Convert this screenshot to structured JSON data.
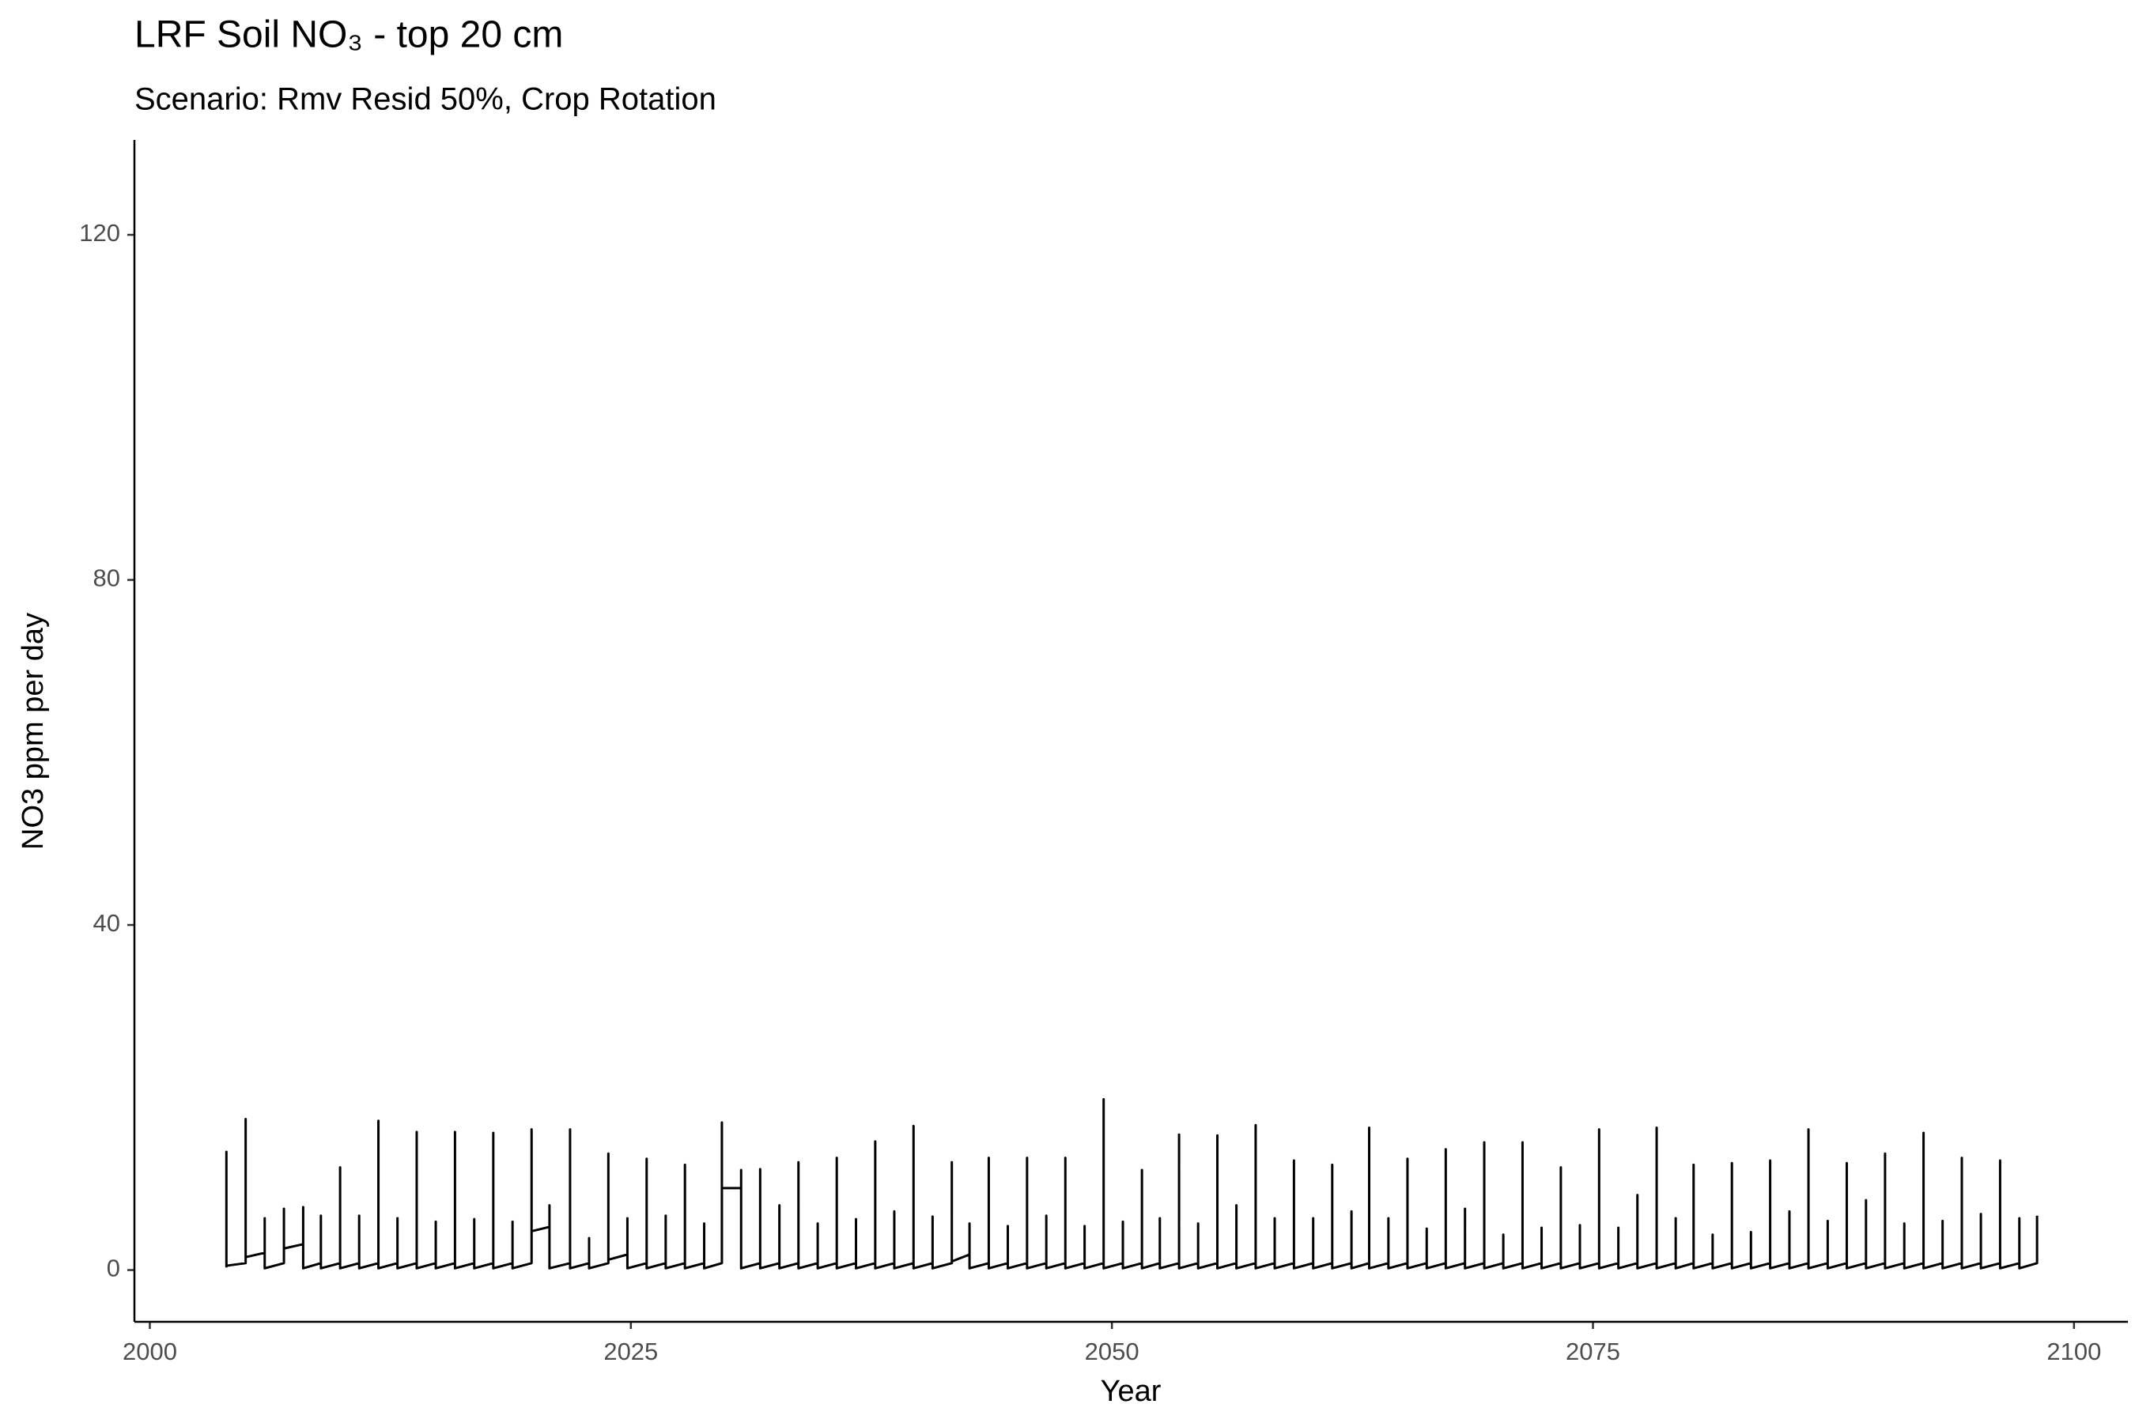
{
  "chart_data": {
    "type": "line",
    "title": "LRF Soil NO₃ - top 20 cm",
    "subtitle": "Scenario: Rmv Resid 50%, Crop Rotation",
    "x_label": "Year",
    "y_label": "NO3 ppm per day",
    "color": "#000000",
    "xlim": [
      1999.2,
      2102.8
    ],
    "xticks": [
      2000,
      2025,
      2050,
      2075,
      2100
    ],
    "ylim": [
      -6,
      131
    ],
    "yticks": [
      0,
      40,
      80,
      120
    ],
    "grid": false,
    "x": [
      2003.98,
      2003.98,
      2003.98,
      2004.98,
      2004.98,
      2004.98,
      2005.97,
      2005.97,
      2005.97,
      2006.97,
      2006.97,
      2006.97,
      2007.97,
      2007.97,
      2007.97,
      2008.89,
      2008.89,
      2008.89,
      2009.89,
      2009.89,
      2009.89,
      2010.88,
      2010.88,
      2010.88,
      2011.88,
      2011.88,
      2011.88,
      2012.87,
      2012.87,
      2012.87,
      2013.87,
      2013.87,
      2013.87,
      2014.86,
      2014.86,
      2014.86,
      2015.86,
      2015.86,
      2015.86,
      2016.86,
      2016.86,
      2016.86,
      2017.85,
      2017.85,
      2017.85,
      2018.85,
      2018.85,
      2018.85,
      2019.84,
      2019.84,
      2019.84,
      2020.77,
      2020.77,
      2020.77,
      2021.84,
      2021.84,
      2021.84,
      2022.83,
      2022.83,
      2022.83,
      2023.83,
      2023.83,
      2023.83,
      2024.82,
      2024.82,
      2024.82,
      2025.82,
      2025.82,
      2025.82,
      2026.81,
      2026.81,
      2026.81,
      2027.81,
      2027.81,
      2027.81,
      2028.81,
      2028.81,
      2028.81,
      2029.73,
      2029.73,
      2029.73,
      2030.73,
      2030.73,
      2030.73,
      2031.72,
      2031.72,
      2031.72,
      2032.72,
      2032.72,
      2032.72,
      2033.71,
      2033.71,
      2033.71,
      2034.71,
      2034.71,
      2034.71,
      2035.7,
      2035.7,
      2035.7,
      2036.7,
      2036.7,
      2036.7,
      2037.7,
      2037.7,
      2037.7,
      2038.69,
      2038.69,
      2038.69,
      2039.69,
      2039.69,
      2039.69,
      2040.68,
      2040.68,
      2040.68,
      2041.68,
      2041.68,
      2041.68,
      2042.6,
      2042.6,
      2042.6,
      2043.6,
      2043.6,
      2043.6,
      2044.59,
      2044.59,
      2044.59,
      2045.59,
      2045.59,
      2045.59,
      2046.59,
      2046.59,
      2046.59,
      2047.58,
      2047.58,
      2047.58,
      2048.58,
      2048.58,
      2048.58,
      2049.57,
      2049.57,
      2049.57,
      2050.57,
      2050.57,
      2050.57,
      2051.56,
      2051.56,
      2051.56,
      2052.49,
      2052.49,
      2052.49,
      2053.49,
      2053.49,
      2053.49,
      2054.48,
      2054.48,
      2054.48,
      2055.48,
      2055.48,
      2055.48,
      2056.47,
      2056.47,
      2056.47,
      2057.47,
      2057.47,
      2057.47,
      2058.46,
      2058.46,
      2058.46,
      2059.46,
      2059.46,
      2059.46,
      2060.46,
      2060.46,
      2060.46,
      2061.45,
      2061.45,
      2061.45,
      2062.45,
      2062.45,
      2062.45,
      2063.37,
      2063.37,
      2063.37,
      2064.37,
      2064.37,
      2064.37,
      2065.36,
      2065.36,
      2065.36,
      2066.36,
      2066.36,
      2066.36,
      2067.35,
      2067.35,
      2067.35,
      2068.35,
      2068.35,
      2068.35,
      2069.35,
      2069.35,
      2069.35,
      2070.34,
      2070.34,
      2070.34,
      2071.34,
      2071.34,
      2071.34,
      2072.33,
      2072.33,
      2072.33,
      2073.33,
      2073.33,
      2073.33,
      2074.32,
      2074.32,
      2074.32,
      2075.32,
      2075.32,
      2075.32,
      2076.32,
      2076.32,
      2076.32,
      2077.31,
      2077.31,
      2077.31,
      2078.31,
      2078.31,
      2078.31,
      2079.3,
      2079.3,
      2079.3,
      2080.23,
      2080.23,
      2080.23,
      2081.22,
      2081.22,
      2081.22,
      2082.22,
      2082.22,
      2082.22,
      2083.21,
      2083.21,
      2083.21,
      2084.21,
      2084.21,
      2084.21,
      2085.21,
      2085.21,
      2085.21,
      2086.2,
      2086.2,
      2086.2,
      2087.2,
      2087.2,
      2087.2,
      2088.19,
      2088.19,
      2088.19,
      2089.19,
      2089.19,
      2089.19,
      2090.18,
      2090.18,
      2090.18,
      2091.18,
      2091.18,
      2091.18,
      2092.18,
      2092.18,
      2092.18,
      2093.17,
      2093.17,
      2093.17,
      2094.17,
      2094.17,
      2094.17,
      2095.16,
      2095.16,
      2095.16,
      2096.16,
      2096.16,
      2096.16,
      2097.16,
      2097.16,
      2097.16,
      2098.08,
      2098.08
    ],
    "values": [
      0.3,
      13.7,
      0.5,
      0.8,
      17.5,
      1.5,
      2.0,
      6.0,
      0.2,
      0.8,
      7.1,
      2.5,
      3.0,
      7.3,
      0.2,
      0.8,
      6.3,
      0.2,
      0.8,
      11.9,
      0.2,
      0.8,
      6.3,
      0.2,
      0.8,
      17.3,
      0.2,
      0.8,
      6.0,
      0.2,
      0.8,
      16.0,
      0.2,
      0.8,
      5.6,
      0.2,
      0.8,
      16.0,
      0.2,
      0.8,
      5.9,
      0.2,
      0.8,
      15.9,
      0.2,
      0.8,
      5.6,
      0.2,
      0.8,
      16.3,
      4.5,
      5.0,
      7.5,
      0.2,
      0.8,
      16.3,
      0.2,
      0.8,
      3.7,
      0.2,
      0.8,
      13.5,
      1.2,
      1.8,
      6.0,
      0.2,
      0.8,
      12.9,
      0.2,
      0.8,
      6.3,
      0.2,
      0.8,
      12.2,
      0.2,
      0.8,
      5.4,
      0.2,
      0.8,
      17.1,
      9.5,
      9.5,
      11.6,
      0.2,
      0.8,
      11.7,
      0.2,
      0.8,
      7.5,
      0.2,
      0.8,
      12.5,
      0.2,
      0.8,
      5.4,
      0.2,
      0.8,
      13.0,
      0.2,
      0.8,
      5.9,
      0.2,
      0.8,
      14.9,
      0.2,
      0.8,
      6.8,
      0.2,
      0.8,
      16.7,
      0.2,
      0.8,
      6.2,
      0.2,
      0.8,
      12.5,
      1.0,
      1.8,
      5.4,
      0.2,
      0.8,
      13.0,
      0.2,
      0.8,
      5.1,
      0.2,
      0.8,
      13.0,
      0.2,
      0.8,
      6.3,
      0.2,
      0.8,
      13.0,
      0.2,
      0.8,
      5.1,
      0.2,
      0.8,
      19.8,
      0.2,
      0.8,
      5.6,
      0.2,
      0.8,
      11.6,
      0.2,
      0.8,
      6.0,
      0.2,
      0.8,
      15.7,
      0.2,
      0.8,
      5.4,
      0.2,
      0.8,
      15.6,
      0.2,
      0.8,
      7.5,
      0.2,
      0.8,
      16.8,
      0.2,
      0.8,
      6.0,
      0.2,
      0.8,
      12.7,
      0.2,
      0.8,
      6.0,
      0.2,
      0.8,
      12.2,
      0.2,
      0.8,
      6.8,
      0.2,
      0.8,
      16.5,
      0.2,
      0.8,
      6.0,
      0.2,
      0.8,
      12.9,
      0.2,
      0.8,
      4.8,
      0.2,
      0.8,
      14.0,
      0.2,
      0.8,
      7.1,
      0.2,
      0.8,
      14.8,
      0.2,
      0.8,
      4.1,
      0.2,
      0.8,
      14.8,
      0.2,
      0.8,
      4.9,
      0.2,
      0.8,
      11.9,
      0.2,
      0.8,
      5.2,
      0.2,
      0.8,
      16.3,
      0.2,
      0.8,
      4.9,
      0.2,
      0.8,
      8.7,
      0.2,
      0.8,
      16.5,
      0.2,
      0.8,
      6.0,
      0.2,
      0.8,
      12.2,
      0.2,
      0.8,
      4.1,
      0.2,
      0.8,
      12.4,
      0.2,
      0.8,
      4.4,
      0.2,
      0.8,
      12.7,
      0.2,
      0.8,
      6.8,
      0.2,
      0.8,
      16.3,
      0.2,
      0.8,
      5.7,
      0.2,
      0.8,
      12.4,
      0.2,
      0.8,
      8.1,
      0.2,
      0.8,
      13.5,
      0.2,
      0.8,
      5.4,
      0.2,
      0.8,
      15.9,
      0.2,
      0.8,
      5.7,
      0.2,
      0.8,
      13.0,
      0.2,
      0.8,
      6.5,
      0.2,
      0.8,
      12.7,
      0.2,
      0.8,
      6.0,
      0.2,
      0.8,
      6.3
    ]
  }
}
